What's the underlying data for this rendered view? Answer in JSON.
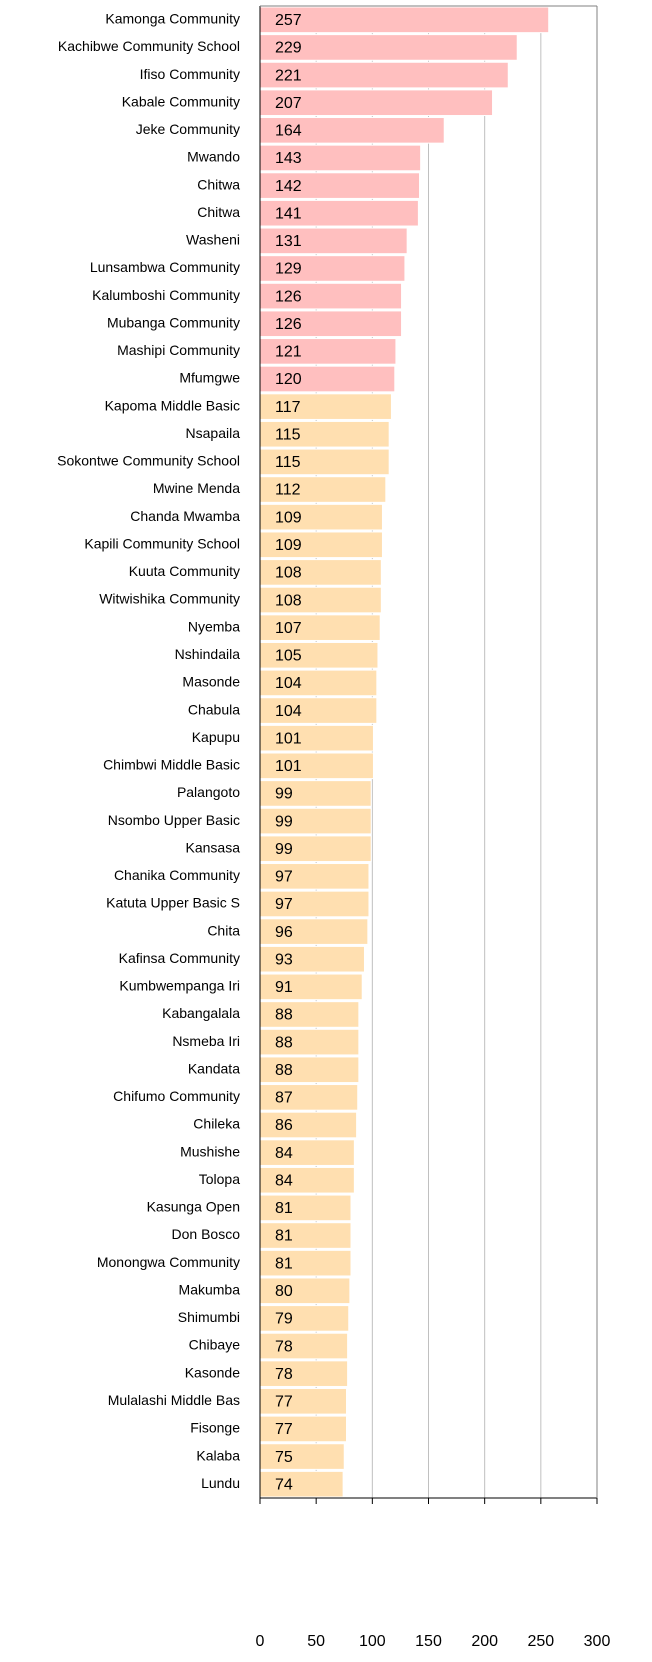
{
  "chart_data": {
    "type": "bar",
    "orientation": "horizontal",
    "categories": [
      "Kamonga Community",
      "Kachibwe Community School",
      "Ifiso Community",
      "Kabale Community",
      "Jeke Community",
      "Mwando",
      "Chitwa",
      "Chitwa",
      "Washeni",
      "Lunsambwa Community",
      "Kalumboshi Community",
      "Mubanga Community",
      "Mashipi Community",
      "Mfumgwe",
      "Kapoma Middle Basic",
      "Nsapaila",
      "Sokontwe Community School",
      "Mwine Menda",
      "Chanda Mwamba",
      "Kapili Community School",
      "Kuuta Community",
      "Witwishika Community",
      "Nyemba",
      "Nshindaila",
      "Masonde",
      "Chabula",
      "Kapupu",
      "Chimbwi Middle Basic",
      "Palangoto",
      "Nsombo Upper Basic",
      "Kansasa",
      "Chanika Community",
      "Katuta Upper Basic S",
      "Chita",
      "Kafinsa Community",
      "Kumbwempanga Iri",
      "Kabangalala",
      "Nsmeba Iri",
      "Kandata",
      "Chifumo  Community",
      "Chileka",
      "Mushishe",
      "Tolopa",
      "Kasunga Open",
      "Don Bosco",
      "Monongwa Community",
      "Makumba",
      "Shimumbi",
      "Chibaye",
      "Kasonde",
      "Mulalashi Middle Bas",
      "Fisonge",
      "Kalaba",
      "Lundu"
    ],
    "values": [
      257,
      229,
      221,
      207,
      164,
      143,
      142,
      141,
      131,
      129,
      126,
      126,
      121,
      120,
      117,
      115,
      115,
      112,
      109,
      109,
      108,
      108,
      107,
      105,
      104,
      104,
      101,
      101,
      99,
      99,
      99,
      97,
      97,
      96,
      93,
      91,
      88,
      88,
      88,
      87,
      86,
      84,
      84,
      81,
      81,
      81,
      80,
      79,
      78,
      78,
      77,
      77,
      75,
      74
    ],
    "colors": [
      "#ffbfbf",
      "#ffbfbf",
      "#ffbfbf",
      "#ffbfbf",
      "#ffbfbf",
      "#ffbfbf",
      "#ffbfbf",
      "#ffbfbf",
      "#ffbfbf",
      "#ffbfbf",
      "#ffbfbf",
      "#ffbfbf",
      "#ffbfbf",
      "#ffbfbf",
      "#ffdfb0",
      "#ffdfb0",
      "#ffdfb0",
      "#ffdfb0",
      "#ffdfb0",
      "#ffdfb0",
      "#ffdfb0",
      "#ffdfb0",
      "#ffdfb0",
      "#ffdfb0",
      "#ffdfb0",
      "#ffdfb0",
      "#ffdfb0",
      "#ffdfb0",
      "#ffdfb0",
      "#ffdfb0",
      "#ffdfb0",
      "#ffdfb0",
      "#ffdfb0",
      "#ffdfb0",
      "#ffdfb0",
      "#ffdfb0",
      "#ffdfb0",
      "#ffdfb0",
      "#ffdfb0",
      "#ffdfb0",
      "#ffdfb0",
      "#ffdfb0",
      "#ffdfb0",
      "#ffdfb0",
      "#ffdfb0",
      "#ffdfb0",
      "#ffdfb0",
      "#ffdfb0",
      "#ffdfb0",
      "#ffdfb0",
      "#ffdfb0",
      "#ffdfb0",
      "#ffdfb0",
      "#ffdfb0"
    ],
    "xlim": [
      0,
      300
    ],
    "xticks": [
      0,
      50,
      100,
      150,
      200,
      250,
      300
    ],
    "grid": true
  }
}
